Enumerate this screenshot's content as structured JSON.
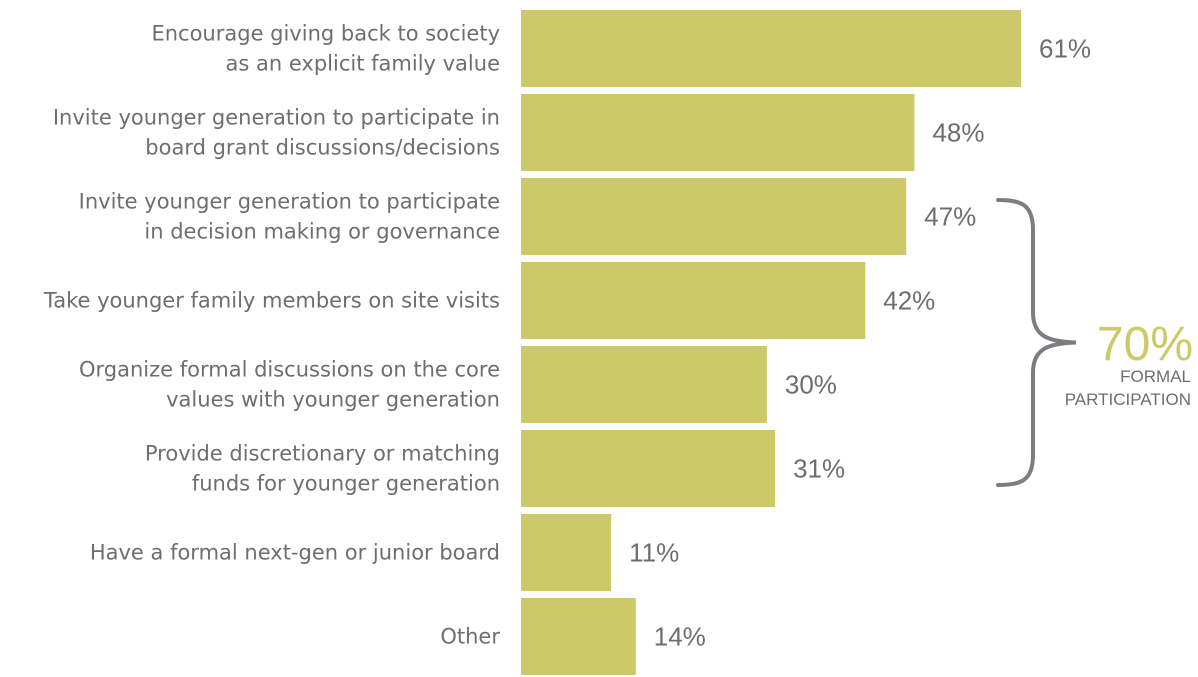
{
  "colors": {
    "bar": "#cbc968",
    "label": "#6d6e71",
    "bracket": "#7b7d80",
    "accent": "#cbc968"
  },
  "chart_data": {
    "type": "bar",
    "orientation": "horizontal",
    "title": "",
    "xlabel": "",
    "ylabel": "",
    "xlim": [
      0,
      70
    ],
    "grid": false,
    "categories": [
      [
        "Encourage giving back to society",
        "as an explicit family value"
      ],
      [
        "Invite younger generation to participate in",
        "board grant discussions/decisions"
      ],
      [
        "Invite younger generation to participate",
        "in decision making or governance"
      ],
      [
        "Take younger family members on site visits"
      ],
      [
        "Organize formal discussions on the core",
        "values with younger generation"
      ],
      [
        "Provide discretionary or matching",
        "funds for younger generation"
      ],
      [
        "Have a formal next-gen or junior board"
      ],
      [
        "Other"
      ]
    ],
    "values": [
      61,
      48,
      47,
      42,
      30,
      31,
      11,
      14
    ],
    "value_labels": [
      "61%",
      "48%",
      "47%",
      "42%",
      "30%",
      "31%",
      "11%",
      "14%"
    ],
    "annotation": {
      "value": "70%",
      "label_lines": [
        "FORMAL",
        "PARTICIPATION"
      ],
      "bracket_spans_categories": [
        2,
        5
      ]
    }
  }
}
